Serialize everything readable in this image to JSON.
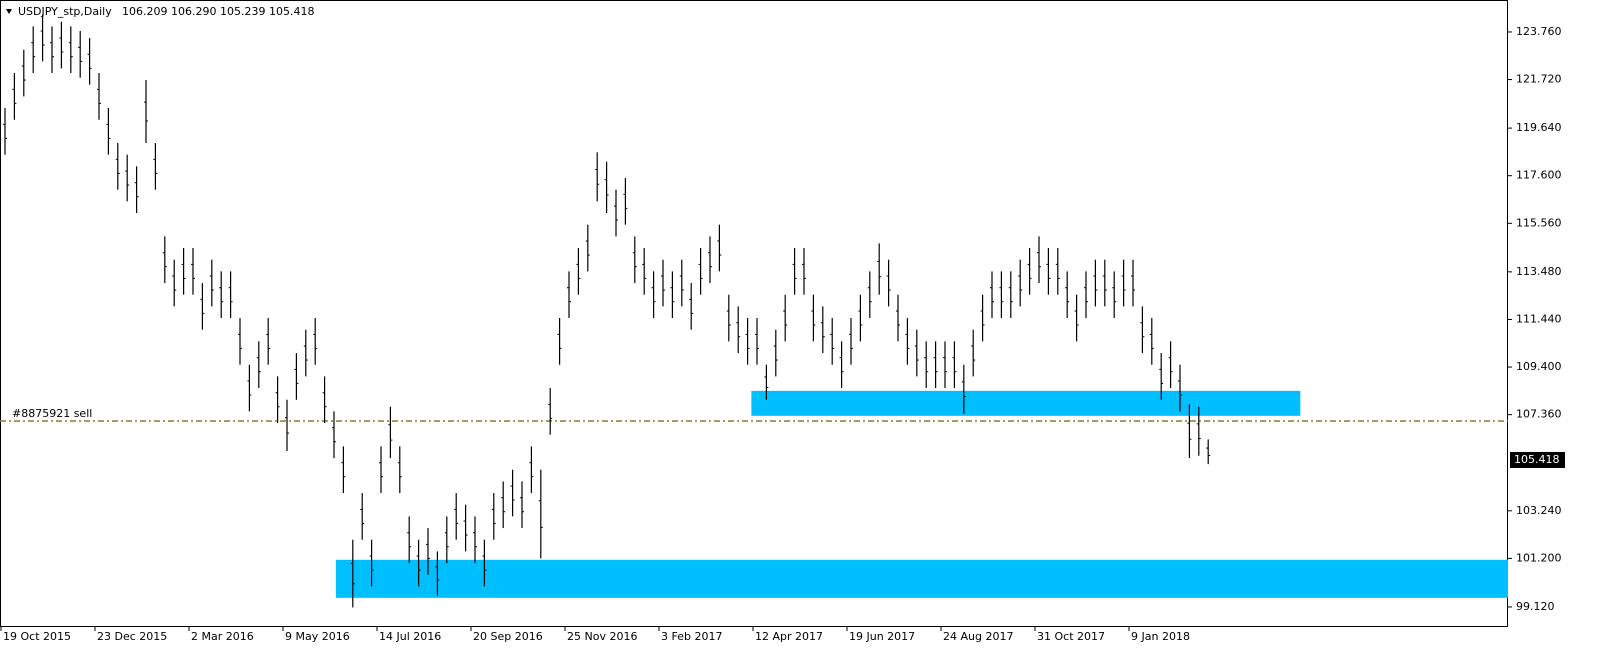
{
  "header": {
    "symbol": "USDJPY_stp,Daily",
    "ohlc": "106.209 106.290 105.239 105.418"
  },
  "chart_data": {
    "type": "ohlc",
    "color": "#000000",
    "categories": [
      "19 Oct 2015",
      null,
      null,
      null,
      null,
      null,
      null,
      null,
      null,
      null,
      "23 Dec 2015",
      null,
      null,
      null,
      null,
      null,
      null,
      null,
      null,
      null,
      "2 Mar 2016",
      null,
      null,
      null,
      null,
      null,
      null,
      null,
      null,
      null,
      "9 May 2016",
      null,
      null,
      null,
      null,
      null,
      null,
      null,
      null,
      null,
      "14 Jul 2016",
      null,
      null,
      null,
      null,
      null,
      null,
      null,
      null,
      null,
      "20 Sep 2016",
      null,
      null,
      null,
      null,
      null,
      null,
      null,
      null,
      null,
      "25 Nov 2016",
      null,
      null,
      null,
      null,
      null,
      null,
      null,
      null,
      null,
      "3 Feb 2017",
      null,
      null,
      null,
      null,
      null,
      null,
      null,
      null,
      null,
      "12 Apr 2017",
      null,
      null,
      null,
      null,
      null,
      null,
      null,
      null,
      null,
      "19 Jun 2017",
      null,
      null,
      null,
      null,
      null,
      null,
      null,
      null,
      null,
      "24 Aug 2017",
      null,
      null,
      null,
      null,
      null,
      null,
      null,
      null,
      null,
      "31 Oct 2017",
      null,
      null,
      null,
      null,
      null,
      null,
      null,
      null,
      null,
      "9 Jan 2018",
      null,
      null,
      null,
      null,
      null,
      null,
      null,
      null
    ],
    "high": [
      120.5,
      122,
      123,
      124,
      124.5,
      124,
      124.2,
      124,
      123.8,
      123.5,
      122,
      120.5,
      119,
      118.5,
      118,
      121.7,
      119,
      115,
      114,
      114.5,
      114.5,
      113,
      114,
      113.5,
      113.5,
      111.5,
      109.5,
      110.5,
      111.5,
      109,
      108,
      110,
      111,
      111.5,
      109,
      107.5,
      106,
      102,
      104,
      102,
      106,
      107.7,
      106,
      103,
      102,
      102.5,
      101.5,
      103,
      104,
      103.5,
      103,
      102,
      104,
      104.5,
      105,
      104.5,
      106,
      105,
      108.5,
      111.5,
      113.5,
      114.5,
      115.5,
      118.6,
      118.2,
      117,
      117.5,
      115,
      114.5,
      113.5,
      114,
      113.5,
      114,
      113,
      114.5,
      115,
      115.5,
      112.5,
      112,
      111.5,
      111.5,
      109.5,
      111,
      112.5,
      114.5,
      114.5,
      112.5,
      112,
      111.5,
      110.5,
      111.5,
      112.5,
      113.5,
      114.7,
      114,
      112.5,
      111.5,
      111,
      110.5,
      110.5,
      110.5,
      110.5,
      109.5,
      111,
      112.5,
      113.5,
      113.5,
      113.5,
      114,
      114.5,
      115,
      114.5,
      114.5,
      113.5,
      112.5,
      113.5,
      114,
      114,
      113.5,
      114,
      114,
      112,
      111.5,
      110,
      110.5,
      109.5,
      107.8,
      107.7,
      106.3
    ],
    "low": [
      118.5,
      120,
      121,
      122,
      122.5,
      122,
      122.2,
      122,
      121.8,
      121.5,
      120,
      118.5,
      117,
      116.5,
      116,
      119,
      117,
      113,
      112,
      112.5,
      112.5,
      111,
      112,
      111.5,
      111.5,
      109.5,
      107.5,
      108.5,
      109.5,
      107,
      105.8,
      108,
      109,
      109.5,
      107,
      105.5,
      104,
      99.1,
      102,
      100,
      104,
      105.5,
      104,
      101,
      100,
      100.5,
      99.6,
      101,
      102,
      101.5,
      101,
      100,
      102,
      102.5,
      103,
      102.5,
      104,
      101.2,
      106.5,
      109.5,
      111.5,
      112.5,
      113.5,
      116.5,
      116,
      115,
      115.5,
      113,
      112.5,
      111.5,
      112,
      111.5,
      112,
      111,
      112.5,
      113,
      113.5,
      110.5,
      110,
      109.5,
      109.5,
      108,
      109,
      110.5,
      112.5,
      112.5,
      110.5,
      110,
      109.5,
      108.5,
      109.5,
      110.5,
      111.5,
      112.5,
      112,
      110.5,
      109.5,
      109,
      108.5,
      108.5,
      108.5,
      108.5,
      107.4,
      109,
      110.5,
      111.5,
      111.5,
      111.5,
      112,
      112.5,
      113,
      112.5,
      112.5,
      111.5,
      110.5,
      111.5,
      112,
      112,
      111.5,
      112,
      112,
      110,
      109.5,
      108,
      108.5,
      107.5,
      105.5,
      105.6,
      105.24
    ],
    "ylim": [
      98.26,
      125.13
    ],
    "yticks": [
      {
        "value": 123.76,
        "label": "123.760"
      },
      {
        "value": 121.72,
        "label": "121.720"
      },
      {
        "value": 119.64,
        "label": "119.640"
      },
      {
        "value": 117.6,
        "label": "117.600"
      },
      {
        "value": 115.56,
        "label": "115.560"
      },
      {
        "value": 113.48,
        "label": "113.480"
      },
      {
        "value": 111.44,
        "label": "111.440"
      },
      {
        "value": 109.4,
        "label": "109.400"
      },
      {
        "value": 107.36,
        "label": "107.360"
      },
      {
        "value": 103.24,
        "label": "103.240"
      },
      {
        "value": 101.2,
        "label": "101.200"
      },
      {
        "value": 99.12,
        "label": "99.120"
      }
    ],
    "zones": [
      {
        "color": "#00bfff",
        "low": 107.31,
        "high": 108.38,
        "start": 79.4,
        "end": 137.8
      },
      {
        "color": "#00bfff",
        "low": 99.51,
        "high": 101.14,
        "start": 35.2,
        "end": 160.4
      }
    ],
    "order": {
      "label": "#8875921 sell",
      "price": 107.09,
      "color": "#8b7d2b"
    },
    "last_price": {
      "value": 105.418,
      "label": "105.418"
    }
  }
}
